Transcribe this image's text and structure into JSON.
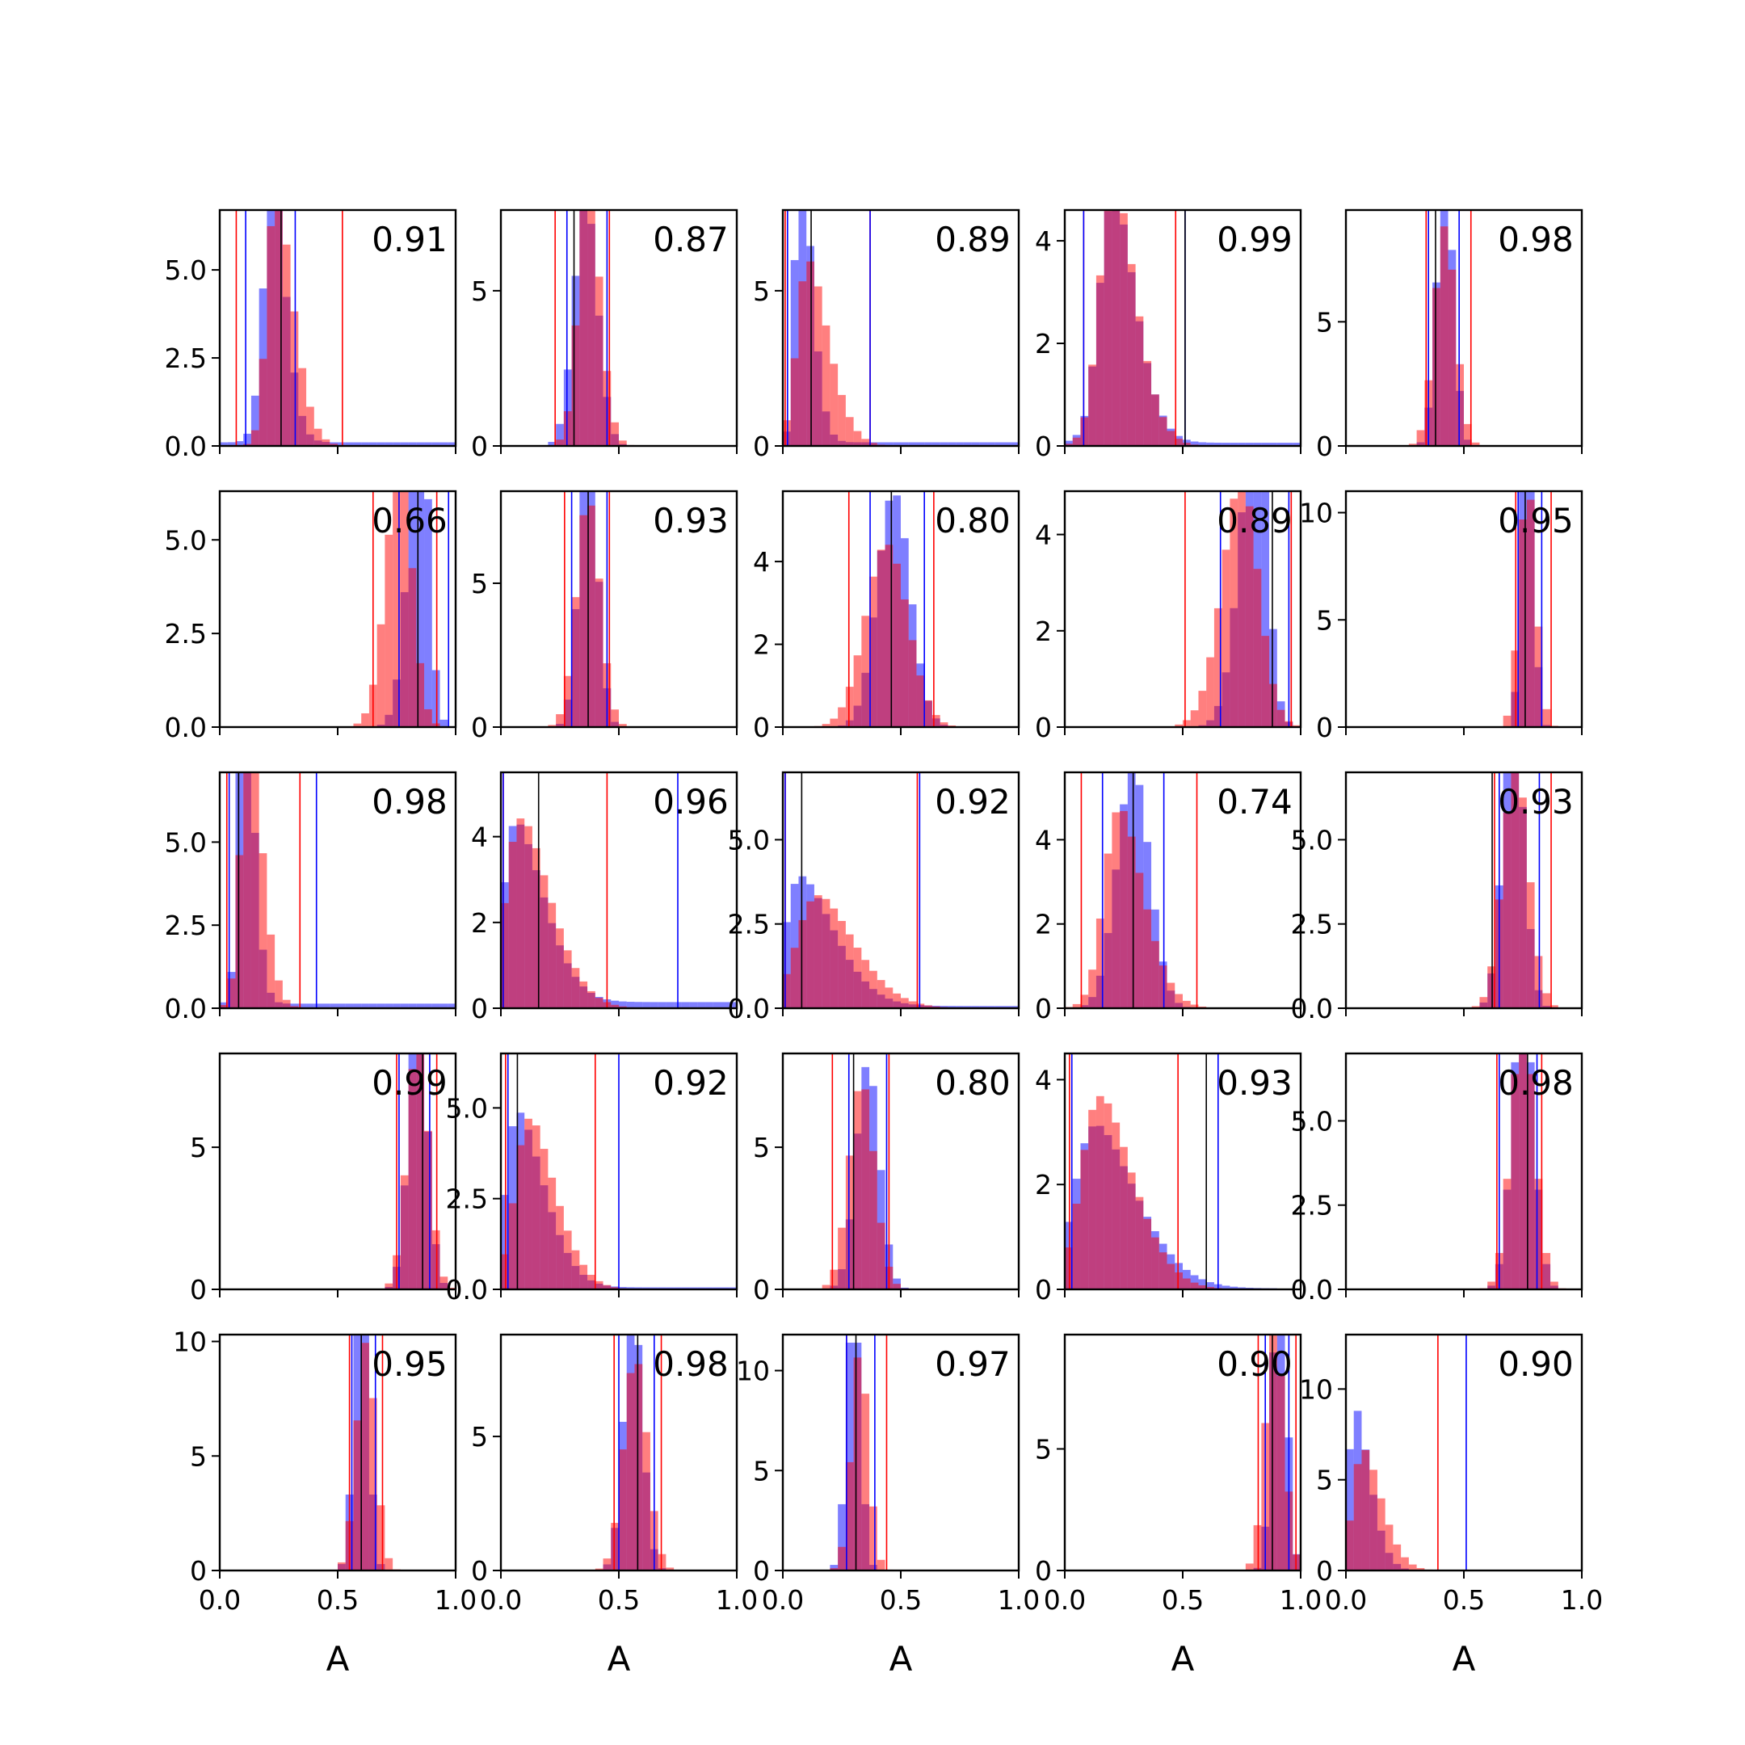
{
  "colors": {
    "series_blue": "#0000ff",
    "series_red": "#ff0000",
    "median_line": "#000000",
    "axes": "#000000",
    "background": "#ffffff"
  },
  "chart_data": {
    "type": "histogram-grid",
    "rows": 5,
    "cols": 5,
    "xlabel": "A",
    "xlim": [
      0,
      1
    ],
    "xticks": [
      "0.0",
      "0.5",
      "1.0"
    ],
    "series": [
      {
        "name": "",
        "color": "#0000ff",
        "alpha": 0.5
      },
      {
        "name": "",
        "color": "#ff0000",
        "alpha": 0.5
      }
    ],
    "panels": [
      {
        "label": "0.91",
        "ylim": [
          0,
          6.7
        ],
        "yticks": [
          0,
          2.5,
          5
        ],
        "ytick_labels": [
          "0.0",
          "2.5",
          "5.0"
        ],
        "blue": {
          "mean": 0.19,
          "sd": 0.07,
          "skew": 3,
          "tail": 0.02
        },
        "red": {
          "mean": 0.2,
          "sd": 0.09,
          "skew": 5,
          "tail": 0.0
        },
        "vlines": {
          "red": [
            0.07,
            0.52
          ],
          "blue": [
            0.11,
            0.32
          ],
          "black": [
            0.26
          ]
        }
      },
      {
        "label": "0.87",
        "ylim": [
          0,
          7.6
        ],
        "yticks": [
          0,
          5
        ],
        "ytick_labels": [
          "0",
          "5"
        ],
        "blue": {
          "mean": 0.36,
          "sd": 0.05,
          "skew": 0,
          "tail": 0.0
        },
        "red": {
          "mean": 0.34,
          "sd": 0.06,
          "skew": 2,
          "tail": 0.0
        },
        "vlines": {
          "red": [
            0.23,
            0.46
          ],
          "blue": [
            0.28,
            0.45
          ],
          "black": [
            0.31
          ]
        }
      },
      {
        "label": "0.89",
        "ylim": [
          0,
          7.6
        ],
        "yticks": [
          0,
          5
        ],
        "ytick_labels": [
          "0",
          "5"
        ],
        "blue": {
          "mean": 0.05,
          "sd": 0.06,
          "skew": 6,
          "tail": 0.02
        },
        "red": {
          "mean": 0.06,
          "sd": 0.11,
          "skew": 5,
          "tail": 0.0
        },
        "vlines": {
          "red": [
            0.01,
            0.37
          ],
          "blue": [
            0.02,
            0.37
          ],
          "black": [
            0.12
          ]
        }
      },
      {
        "label": "0.99",
        "ylim": [
          0,
          4.6
        ],
        "yticks": [
          0,
          2,
          4
        ],
        "ytick_labels": [
          "0",
          "2",
          "4"
        ],
        "blue": {
          "mean": 0.15,
          "sd": 0.12,
          "skew": 4,
          "tail": 0.02
        },
        "red": {
          "mean": 0.15,
          "sd": 0.12,
          "skew": 4,
          "tail": 0.0
        },
        "vlines": {
          "red": [
            0.08,
            0.47
          ],
          "blue": [
            0.08,
            0.51
          ],
          "black": [
            0.51
          ]
        }
      },
      {
        "label": "0.98",
        "ylim": [
          0,
          9.5
        ],
        "yticks": [
          0,
          5
        ],
        "ytick_labels": [
          "0",
          "5"
        ],
        "blue": {
          "mean": 0.42,
          "sd": 0.035,
          "skew": 0,
          "tail": 0.0
        },
        "red": {
          "mean": 0.42,
          "sd": 0.045,
          "skew": 0,
          "tail": 0.0
        },
        "vlines": {
          "red": [
            0.34,
            0.53
          ],
          "blue": [
            0.35,
            0.48
          ],
          "black": [
            0.38
          ]
        }
      },
      {
        "label": "0.66",
        "ylim": [
          0,
          6.3
        ],
        "yticks": [
          0,
          2.5,
          5
        ],
        "ytick_labels": [
          "0.0",
          "2.5",
          "5.0"
        ],
        "blue": {
          "mean": 0.88,
          "sd": 0.06,
          "skew": -3,
          "tail": 0.0
        },
        "red": {
          "mean": 0.8,
          "sd": 0.07,
          "skew": -2,
          "tail": 0.0
        },
        "vlines": {
          "red": [
            0.65,
            0.92
          ],
          "blue": [
            0.76,
            0.97
          ],
          "black": [
            0.84
          ]
        }
      },
      {
        "label": "0.93",
        "ylim": [
          0,
          8.2
        ],
        "yticks": [
          0,
          5
        ],
        "ytick_labels": [
          "0",
          "5"
        ],
        "blue": {
          "mean": 0.37,
          "sd": 0.04,
          "skew": 0,
          "tail": 0.0
        },
        "red": {
          "mean": 0.37,
          "sd": 0.05,
          "skew": 0,
          "tail": 0.0
        },
        "vlines": {
          "red": [
            0.27,
            0.46
          ],
          "blue": [
            0.3,
            0.45
          ],
          "black": [
            0.37
          ]
        }
      },
      {
        "label": "0.80",
        "ylim": [
          0,
          5.7
        ],
        "yticks": [
          0,
          2,
          4
        ],
        "ytick_labels": [
          "0",
          "2",
          "4"
        ],
        "blue": {
          "mean": 0.47,
          "sd": 0.07,
          "skew": 0,
          "tail": 0.0
        },
        "red": {
          "mean": 0.44,
          "sd": 0.09,
          "skew": 0,
          "tail": 0.0
        },
        "vlines": {
          "red": [
            0.28,
            0.64
          ],
          "blue": [
            0.37,
            0.6
          ],
          "black": [
            0.46
          ]
        }
      },
      {
        "label": "0.89",
        "ylim": [
          0,
          4.9
        ],
        "yticks": [
          0,
          2,
          4
        ],
        "ytick_labels": [
          "0",
          "2",
          "4"
        ],
        "blue": {
          "mean": 0.85,
          "sd": 0.08,
          "skew": -3,
          "tail": 0.0
        },
        "red": {
          "mean": 0.8,
          "sd": 0.1,
          "skew": -2,
          "tail": 0.0
        },
        "vlines": {
          "red": [
            0.51,
            0.96
          ],
          "blue": [
            0.66,
            0.95
          ],
          "black": [
            0.88
          ]
        }
      },
      {
        "label": "0.95",
        "ylim": [
          0,
          11
        ],
        "yticks": [
          0,
          5,
          10
        ],
        "ytick_labels": [
          "0",
          "5",
          "10"
        ],
        "blue": {
          "mean": 0.77,
          "sd": 0.025,
          "skew": 0,
          "tail": 0.0
        },
        "red": {
          "mean": 0.77,
          "sd": 0.035,
          "skew": 0,
          "tail": 0.0
        },
        "vlines": {
          "red": [
            0.72,
            0.87
          ],
          "blue": [
            0.73,
            0.83
          ],
          "black": [
            0.76
          ]
        }
      },
      {
        "label": "0.98",
        "ylim": [
          0,
          7.1
        ],
        "yticks": [
          0,
          2.5,
          5
        ],
        "ytick_labels": [
          "0.0",
          "2.5",
          "5.0"
        ],
        "blue": {
          "mean": 0.08,
          "sd": 0.05,
          "skew": 4,
          "tail": 0.02
        },
        "red": {
          "mean": 0.09,
          "sd": 0.07,
          "skew": 4,
          "tail": 0.0
        },
        "vlines": {
          "red": [
            0.03,
            0.34
          ],
          "blue": [
            0.04,
            0.41
          ],
          "black": [
            0.08
          ]
        }
      },
      {
        "label": "0.96",
        "ylim": [
          0,
          5.5
        ],
        "yticks": [
          0,
          2,
          4
        ],
        "ytick_labels": [
          "0",
          "2",
          "4"
        ],
        "blue": {
          "mean": 0.01,
          "sd": 0.15,
          "skew": 8,
          "tail": 0.06
        },
        "red": {
          "mean": 0.02,
          "sd": 0.16,
          "skew": 6,
          "tail": 0.0
        },
        "vlines": {
          "red": [
            0.01,
            0.45
          ],
          "blue": [
            0.01,
            0.75
          ],
          "black": [
            0.16
          ]
        }
      },
      {
        "label": "0.92",
        "ylim": [
          0,
          7.0
        ],
        "yticks": [
          0,
          2.5,
          5
        ],
        "ytick_labels": [
          "0.0",
          "2.5",
          "5.0"
        ],
        "blue": {
          "mean": 0.01,
          "sd": 0.18,
          "skew": 8,
          "tail": 0.03
        },
        "red": {
          "mean": 0.06,
          "sd": 0.2,
          "skew": 5,
          "tail": 0.0
        },
        "vlines": {
          "red": [
            0.01,
            0.57
          ],
          "blue": [
            0.01,
            0.58
          ],
          "black": [
            0.08
          ]
        }
      },
      {
        "label": "0.74",
        "ylim": [
          0,
          5.6
        ],
        "yticks": [
          0,
          2,
          4
        ],
        "ytick_labels": [
          "0",
          "2",
          "4"
        ],
        "blue": {
          "mean": 0.29,
          "sd": 0.07,
          "skew": 0,
          "tail": 0.0
        },
        "red": {
          "mean": 0.17,
          "sd": 0.13,
          "skew": 4,
          "tail": 0.0
        },
        "vlines": {
          "red": [
            0.07,
            0.56
          ],
          "blue": [
            0.16,
            0.42
          ],
          "black": [
            0.29
          ]
        }
      },
      {
        "label": "0.93",
        "ylim": [
          0,
          7.0
        ],
        "yticks": [
          0,
          2.5,
          5
        ],
        "ytick_labels": [
          "0.0",
          "2.5",
          "5.0"
        ],
        "blue": {
          "mean": 0.71,
          "sd": 0.045,
          "skew": 0,
          "tail": 0.0
        },
        "red": {
          "mean": 0.72,
          "sd": 0.055,
          "skew": 0,
          "tail": 0.0
        },
        "vlines": {
          "red": [
            0.63,
            0.87
          ],
          "blue": [
            0.65,
            0.82
          ],
          "black": [
            0.62
          ]
        }
      },
      {
        "label": "0.99",
        "ylim": [
          0,
          8.3
        ],
        "yticks": [
          0,
          5
        ],
        "ytick_labels": [
          "0",
          "5"
        ],
        "blue": {
          "mean": 0.84,
          "sd": 0.04,
          "skew": 0,
          "tail": 0.0
        },
        "red": {
          "mean": 0.84,
          "sd": 0.045,
          "skew": 0,
          "tail": 0.0
        },
        "vlines": {
          "red": [
            0.75,
            0.92
          ],
          "blue": [
            0.76,
            0.89
          ],
          "black": [
            0.86
          ]
        }
      },
      {
        "label": "0.92",
        "ylim": [
          0,
          6.5
        ],
        "yticks": [
          0,
          2.5,
          5
        ],
        "ytick_labels": [
          "0.0",
          "2.5",
          "5.0"
        ],
        "blue": {
          "mean": 0.02,
          "sd": 0.14,
          "skew": 7,
          "tail": 0.02
        },
        "red": {
          "mean": 0.06,
          "sd": 0.14,
          "skew": 5,
          "tail": 0.0
        },
        "vlines": {
          "red": [
            0.02,
            0.4
          ],
          "blue": [
            0.03,
            0.5
          ],
          "black": [
            0.07
          ]
        }
      },
      {
        "label": "0.80",
        "ylim": [
          0,
          8.3
        ],
        "yticks": [
          0,
          5
        ],
        "ytick_labels": [
          "0",
          "5"
        ],
        "blue": {
          "mean": 0.36,
          "sd": 0.05,
          "skew": 0,
          "tail": 0.0
        },
        "red": {
          "mean": 0.31,
          "sd": 0.06,
          "skew": 1,
          "tail": 0.0
        },
        "vlines": {
          "red": [
            0.21,
            0.45
          ],
          "blue": [
            0.28,
            0.44
          ],
          "black": [
            0.3
          ]
        }
      },
      {
        "label": "0.93",
        "ylim": [
          0,
          4.5
        ],
        "yticks": [
          0,
          2,
          4
        ],
        "ytick_labels": [
          "0",
          "2",
          "4"
        ],
        "blue": {
          "mean": 0.04,
          "sd": 0.22,
          "skew": 6,
          "tail": 0.01
        },
        "red": {
          "mean": 0.07,
          "sd": 0.18,
          "skew": 5,
          "tail": 0.0
        },
        "vlines": {
          "red": [
            0.02,
            0.48
          ],
          "blue": [
            0.03,
            0.65
          ],
          "black": [
            0.6
          ]
        }
      },
      {
        "label": "0.98",
        "ylim": [
          0,
          7.0
        ],
        "yticks": [
          0,
          2.5,
          5
        ],
        "ytick_labels": [
          "0.0",
          "2.5",
          "5.0"
        ],
        "blue": {
          "mean": 0.75,
          "sd": 0.045,
          "skew": 0,
          "tail": 0.0
        },
        "red": {
          "mean": 0.75,
          "sd": 0.05,
          "skew": 0,
          "tail": 0.0
        },
        "vlines": {
          "red": [
            0.64,
            0.83
          ],
          "blue": [
            0.65,
            0.81
          ],
          "black": [
            0.77
          ]
        }
      },
      {
        "label": "0.95",
        "ylim": [
          0,
          10.3
        ],
        "yticks": [
          0,
          5,
          10
        ],
        "ytick_labels": [
          "0",
          "5",
          "10"
        ],
        "blue": {
          "mean": 0.6,
          "sd": 0.03,
          "skew": 0,
          "tail": 0.0
        },
        "red": {
          "mean": 0.62,
          "sd": 0.04,
          "skew": 0,
          "tail": 0.0
        },
        "vlines": {
          "red": [
            0.55,
            0.69
          ],
          "blue": [
            0.56,
            0.66
          ],
          "black": [
            0.6
          ]
        }
      },
      {
        "label": "0.98",
        "ylim": [
          0,
          8.8
        ],
        "yticks": [
          0,
          5
        ],
        "ytick_labels": [
          "0",
          "5"
        ],
        "blue": {
          "mean": 0.56,
          "sd": 0.04,
          "skew": 0,
          "tail": 0.0
        },
        "red": {
          "mean": 0.57,
          "sd": 0.05,
          "skew": 0,
          "tail": 0.0
        },
        "vlines": {
          "red": [
            0.48,
            0.68
          ],
          "blue": [
            0.5,
            0.65
          ],
          "black": [
            0.58
          ]
        }
      },
      {
        "label": "0.97",
        "ylim": [
          0,
          11.8
        ],
        "yticks": [
          0,
          5,
          10
        ],
        "ytick_labels": [
          "0",
          "5",
          "10"
        ],
        "blue": {
          "mean": 0.3,
          "sd": 0.03,
          "skew": 0,
          "tail": 0.0
        },
        "red": {
          "mean": 0.31,
          "sd": 0.04,
          "skew": 1,
          "tail": 0.0
        },
        "vlines": {
          "red": [
            0.27,
            0.44
          ],
          "blue": [
            0.27,
            0.39
          ],
          "black": [
            0.31
          ]
        }
      },
      {
        "label": "0.90",
        "ylim": [
          0,
          9.7
        ],
        "yticks": [
          0,
          5
        ],
        "ytick_labels": [
          "0",
          "5"
        ],
        "blue": {
          "mean": 0.91,
          "sd": 0.03,
          "skew": 0,
          "tail": 0.0
        },
        "red": {
          "mean": 0.89,
          "sd": 0.04,
          "skew": 0,
          "tail": 0.0
        },
        "vlines": {
          "red": [
            0.82,
            0.98
          ],
          "blue": [
            0.85,
            0.95
          ],
          "black": [
            0.88
          ]
        }
      },
      {
        "label": "0.90",
        "ylim": [
          0,
          13
        ],
        "yticks": [
          0,
          5,
          10
        ],
        "ytick_labels": [
          "0",
          "5",
          "10"
        ],
        "blue": {
          "mean": 0.01,
          "sd": 0.08,
          "skew": 8,
          "tail": 0.0
        },
        "red": {
          "mean": 0.03,
          "sd": 0.1,
          "skew": 5,
          "tail": 0.0
        },
        "vlines": {
          "red": [
            0.39
          ],
          "blue": [
            0.51
          ],
          "black": []
        }
      }
    ]
  }
}
